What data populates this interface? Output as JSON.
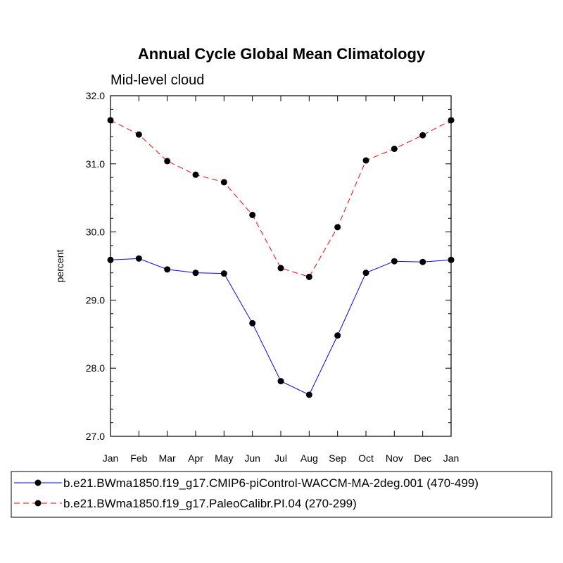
{
  "chart_data": {
    "type": "line",
    "title": "Annual Cycle Global Mean Climatology",
    "subtitle": "Mid-level cloud",
    "xlabel": "",
    "ylabel": "percent",
    "categories": [
      "Jan",
      "Feb",
      "Mar",
      "Apr",
      "May",
      "Jun",
      "Jul",
      "Aug",
      "Sep",
      "Oct",
      "Nov",
      "Dec",
      "Jan"
    ],
    "ylim": [
      27.0,
      32.0
    ],
    "yticks": [
      "27.0",
      "28.0",
      "29.0",
      "30.0",
      "31.0",
      "32.0"
    ],
    "grid": false,
    "legend_position": "bottom",
    "series": [
      {
        "name": "b.e21.BWma1850.f19_g17.CMIP6-piControl-WACCM-MA-2deg.001 (470-499)",
        "color": "#0000ff",
        "style": "solid",
        "values": [
          29.59,
          29.61,
          29.45,
          29.4,
          29.39,
          28.66,
          27.81,
          27.61,
          28.48,
          29.4,
          29.57,
          29.56,
          29.59
        ]
      },
      {
        "name": "b.e21.BWma1850.f19_g17.PaleoCalibr.PI.04 (270-299)",
        "color": "#ff0000",
        "style": "dashed",
        "values": [
          31.64,
          31.43,
          31.04,
          30.84,
          30.73,
          30.25,
          29.47,
          29.34,
          30.07,
          31.05,
          31.22,
          31.42,
          31.64
        ]
      }
    ]
  }
}
